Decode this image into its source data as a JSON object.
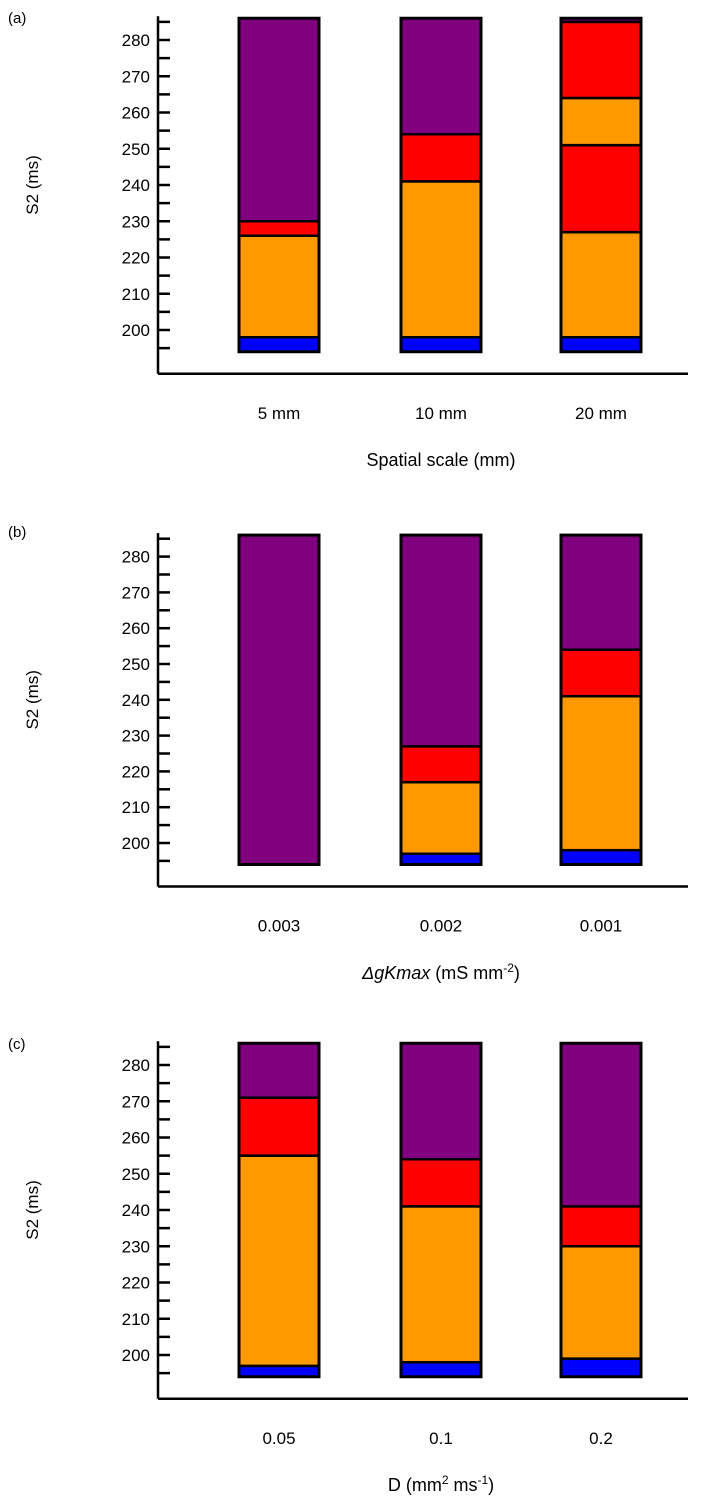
{
  "chart_data": [
    {
      "type": "bar",
      "stacked": true,
      "panel_label": "(a)",
      "ylabel": "S2 (ms)",
      "xlabel": {
        "text": "Spatial scale (mm)"
      },
      "categories": [
        "5 mm",
        "10 mm",
        "20 mm"
      ],
      "yticks": [
        200,
        210,
        220,
        230,
        240,
        250,
        260,
        270,
        280
      ],
      "ylim": [
        194,
        286
      ],
      "bars": [
        {
          "category": "5 mm",
          "segments": [
            {
              "color": "#0000ff",
              "from": 194,
              "to": 198
            },
            {
              "color": "#ff9900",
              "from": 198,
              "to": 226
            },
            {
              "color": "#ff0000",
              "from": 226,
              "to": 230
            },
            {
              "color": "#800080",
              "from": 230,
              "to": 286
            }
          ]
        },
        {
          "category": "10 mm",
          "segments": [
            {
              "color": "#0000ff",
              "from": 194,
              "to": 198
            },
            {
              "color": "#ff9900",
              "from": 198,
              "to": 241
            },
            {
              "color": "#ff0000",
              "from": 241,
              "to": 254
            },
            {
              "color": "#800080",
              "from": 254,
              "to": 286
            }
          ]
        },
        {
          "category": "20 mm",
          "segments": [
            {
              "color": "#0000ff",
              "from": 194,
              "to": 198
            },
            {
              "color": "#ff9900",
              "from": 198,
              "to": 227
            },
            {
              "color": "#ff0000",
              "from": 227,
              "to": 251
            },
            {
              "color": "#ff9900",
              "from": 251,
              "to": 264
            },
            {
              "color": "#ff0000",
              "from": 264,
              "to": 285
            },
            {
              "color": "#800080",
              "from": 285,
              "to": 286
            }
          ]
        }
      ]
    },
    {
      "type": "bar",
      "stacked": true,
      "panel_label": "(b)",
      "ylabel": "S2 (ms)",
      "xlabel": {
        "prefix": "Δ",
        "italic": "gKmax",
        "text": " (mS mm",
        "sup": "-2",
        "suffix": ")"
      },
      "categories": [
        "0.003",
        "0.002",
        "0.001"
      ],
      "yticks": [
        200,
        210,
        220,
        230,
        240,
        250,
        260,
        270,
        280
      ],
      "ylim": [
        194,
        286
      ],
      "bars": [
        {
          "category": "0.003",
          "segments": [
            {
              "color": "#800080",
              "from": 194,
              "to": 286
            }
          ]
        },
        {
          "category": "0.002",
          "segments": [
            {
              "color": "#0000ff",
              "from": 194,
              "to": 197
            },
            {
              "color": "#ff9900",
              "from": 197,
              "to": 217
            },
            {
              "color": "#ff0000",
              "from": 217,
              "to": 227
            },
            {
              "color": "#800080",
              "from": 227,
              "to": 286
            }
          ]
        },
        {
          "category": "0.001",
          "segments": [
            {
              "color": "#0000ff",
              "from": 194,
              "to": 198
            },
            {
              "color": "#ff9900",
              "from": 198,
              "to": 241
            },
            {
              "color": "#ff0000",
              "from": 241,
              "to": 254
            },
            {
              "color": "#800080",
              "from": 254,
              "to": 286
            }
          ]
        }
      ]
    },
    {
      "type": "bar",
      "stacked": true,
      "panel_label": "(c)",
      "ylabel": "S2 (ms)",
      "xlabel": {
        "text": "D (mm",
        "sup": "2",
        "text2": " ms",
        "sup2": "-1",
        "suffix": ")"
      },
      "categories": [
        "0.05",
        "0.1",
        "0.2"
      ],
      "yticks": [
        200,
        210,
        220,
        230,
        240,
        250,
        260,
        270,
        280
      ],
      "ylim": [
        194,
        286
      ],
      "bars": [
        {
          "category": "0.05",
          "segments": [
            {
              "color": "#0000ff",
              "from": 194,
              "to": 197
            },
            {
              "color": "#ff9900",
              "from": 197,
              "to": 255
            },
            {
              "color": "#ff0000",
              "from": 255,
              "to": 271
            },
            {
              "color": "#800080",
              "from": 271,
              "to": 286
            }
          ]
        },
        {
          "category": "0.1",
          "segments": [
            {
              "color": "#0000ff",
              "from": 194,
              "to": 198
            },
            {
              "color": "#ff9900",
              "from": 198,
              "to": 241
            },
            {
              "color": "#ff0000",
              "from": 241,
              "to": 254
            },
            {
              "color": "#800080",
              "from": 254,
              "to": 286
            }
          ]
        },
        {
          "category": "0.2",
          "segments": [
            {
              "color": "#0000ff",
              "from": 194,
              "to": 199
            },
            {
              "color": "#ff9900",
              "from": 199,
              "to": 230
            },
            {
              "color": "#ff0000",
              "from": 230,
              "to": 241
            },
            {
              "color": "#800080",
              "from": 241,
              "to": 286
            }
          ]
        }
      ]
    }
  ]
}
